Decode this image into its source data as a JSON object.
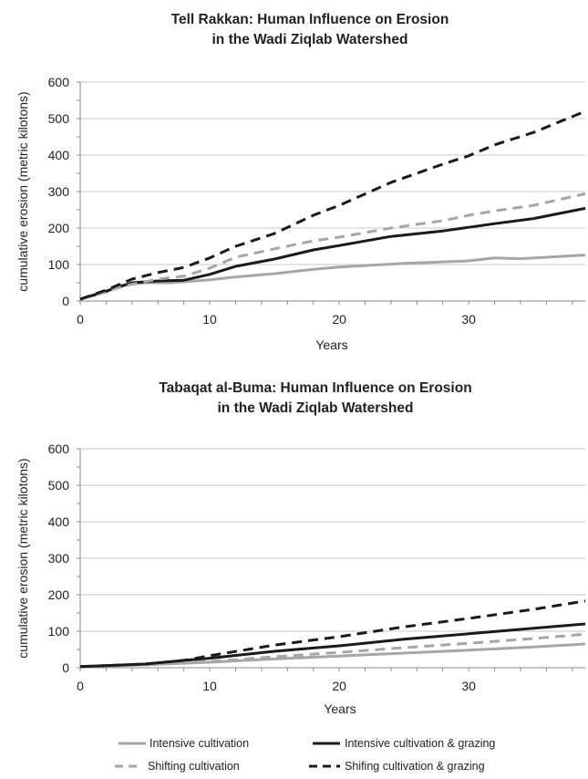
{
  "chart_data": [
    {
      "type": "line",
      "title_line1": "Tell Rakkan: Human Influence on Erosion",
      "title_line2": "in the Wadi Ziqlab Watershed",
      "xlabel": "Years",
      "ylabel": "cumulative erosion (metric kilotons)",
      "xlim": [
        0,
        39
      ],
      "ylim": [
        0,
        600
      ],
      "xticks": [
        0,
        10,
        20,
        30
      ],
      "yticks": [
        0,
        100,
        200,
        300,
        400,
        500,
        600
      ],
      "grid": "horizontal",
      "series": [
        {
          "name": "Intensive cultivation",
          "color": "#a6a6a6",
          "dash": "solid",
          "x": [
            0,
            2,
            3,
            5,
            7,
            10,
            12,
            15,
            18,
            20,
            25,
            30,
            32,
            34,
            36,
            39
          ],
          "y": [
            5,
            25,
            43,
            50,
            50,
            58,
            66,
            75,
            87,
            93,
            103,
            110,
            118,
            116,
            120,
            126
          ]
        },
        {
          "name": "Intensive cultivation & grazing",
          "color": "#1a1a1a",
          "dash": "solid",
          "x": [
            0,
            2,
            4,
            6,
            8,
            10,
            12,
            15,
            18,
            20,
            24,
            28,
            30,
            32,
            35,
            39
          ],
          "y": [
            5,
            27,
            50,
            55,
            57,
            73,
            95,
            115,
            140,
            152,
            177,
            192,
            202,
            212,
            226,
            254
          ]
        },
        {
          "name": "Shifting cultivation",
          "color": "#a6a6a6",
          "dash": "dashed",
          "x": [
            0,
            2,
            4,
            6,
            8,
            10,
            12,
            15,
            18,
            20,
            24,
            28,
            30,
            32,
            35,
            39
          ],
          "y": [
            5,
            27,
            46,
            60,
            68,
            90,
            120,
            143,
            165,
            175,
            200,
            220,
            235,
            247,
            262,
            294
          ]
        },
        {
          "name": "Shifing cultivation & grazing",
          "color": "#1a1a1a",
          "dash": "dashed",
          "x": [
            0,
            2,
            4,
            6,
            8,
            10,
            12,
            15,
            18,
            20,
            24,
            28,
            30,
            32,
            35,
            39
          ],
          "y": [
            5,
            30,
            60,
            78,
            92,
            118,
            150,
            185,
            235,
            262,
            325,
            375,
            398,
            428,
            462,
            520
          ]
        }
      ]
    },
    {
      "type": "line",
      "title_line1": "Tabaqat al-Buma: Human Influence on Erosion",
      "title_line2": "in the Wadi Ziqlab Watershed",
      "xlabel": "Years",
      "ylabel": "cumulative erosion (metric kilotons)",
      "xlim": [
        0,
        39
      ],
      "ylim": [
        0,
        600
      ],
      "xticks": [
        0,
        10,
        20,
        30
      ],
      "yticks": [
        0,
        100,
        200,
        300,
        400,
        500,
        600
      ],
      "grid": "horizontal",
      "series": [
        {
          "name": "Intensive cultivation",
          "color": "#a6a6a6",
          "dash": "solid",
          "x": [
            0,
            5,
            10,
            15,
            20,
            25,
            30,
            35,
            39
          ],
          "y": [
            3,
            8,
            15,
            24,
            32,
            40,
            48,
            57,
            65
          ]
        },
        {
          "name": "Intensive cultivation & grazing",
          "color": "#1a1a1a",
          "dash": "solid",
          "x": [
            0,
            5,
            8,
            10,
            15,
            20,
            25,
            30,
            35,
            39
          ],
          "y": [
            3,
            10,
            20,
            26,
            45,
            60,
            78,
            93,
            108,
            120
          ]
        },
        {
          "name": "Shifting cultivation",
          "color": "#a6a6a6",
          "dash": "dashed",
          "x": [
            0,
            5,
            10,
            15,
            20,
            25,
            30,
            35,
            39
          ],
          "y": [
            3,
            8,
            17,
            30,
            42,
            55,
            67,
            80,
            92
          ]
        },
        {
          "name": "Shifing cultivation & grazing",
          "color": "#1a1a1a",
          "dash": "dashed",
          "x": [
            0,
            5,
            8,
            10,
            15,
            20,
            25,
            30,
            35,
            39
          ],
          "y": [
            3,
            10,
            20,
            33,
            62,
            85,
            112,
            135,
            160,
            183
          ]
        }
      ]
    }
  ],
  "legend": {
    "placement": "bottom",
    "items": [
      {
        "label": "Intensive cultivation",
        "color": "#a6a6a6",
        "dash": "solid"
      },
      {
        "label": "Intensive cultivation & grazing",
        "color": "#1a1a1a",
        "dash": "solid"
      },
      {
        "label": "Shifting cultivation",
        "color": "#a6a6a6",
        "dash": "dashed"
      },
      {
        "label": "Shifing cultivation & grazing",
        "color": "#1a1a1a",
        "dash": "dashed"
      }
    ]
  }
}
